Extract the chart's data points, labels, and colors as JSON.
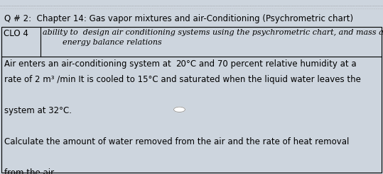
{
  "bg_color": "#cdd5de",
  "title": "Q # 2:  Chapter 14: Gas vapor mixtures and air-Conditioning (Psychrometric chart)",
  "clo_label": "CLO 4",
  "clo_line1": "ability to  design air conditioning systems using the psychrometric chart, and mass and",
  "clo_line2": "        energy balance relations",
  "body_line1a": "Air enters an air-conditioning system at ",
  "body_highlight": "20",
  "body_line1b": "°C and 70 percent relative humidity at a",
  "body_line2": "rate of 2 m³ /min It is cooled to 15°C and saturated when the liquid water leaves the",
  "body_line3": "system at 32°C.",
  "body_line4": "Calculate the amount of water removed from the air and the rate of heat removal",
  "body_line5": "from the air.",
  "title_fontsize": 8.5,
  "body_fontsize": 8.5,
  "clo_fontsize": 8.5,
  "fig_width": 5.39,
  "fig_height": 2.46,
  "dpi": 100
}
